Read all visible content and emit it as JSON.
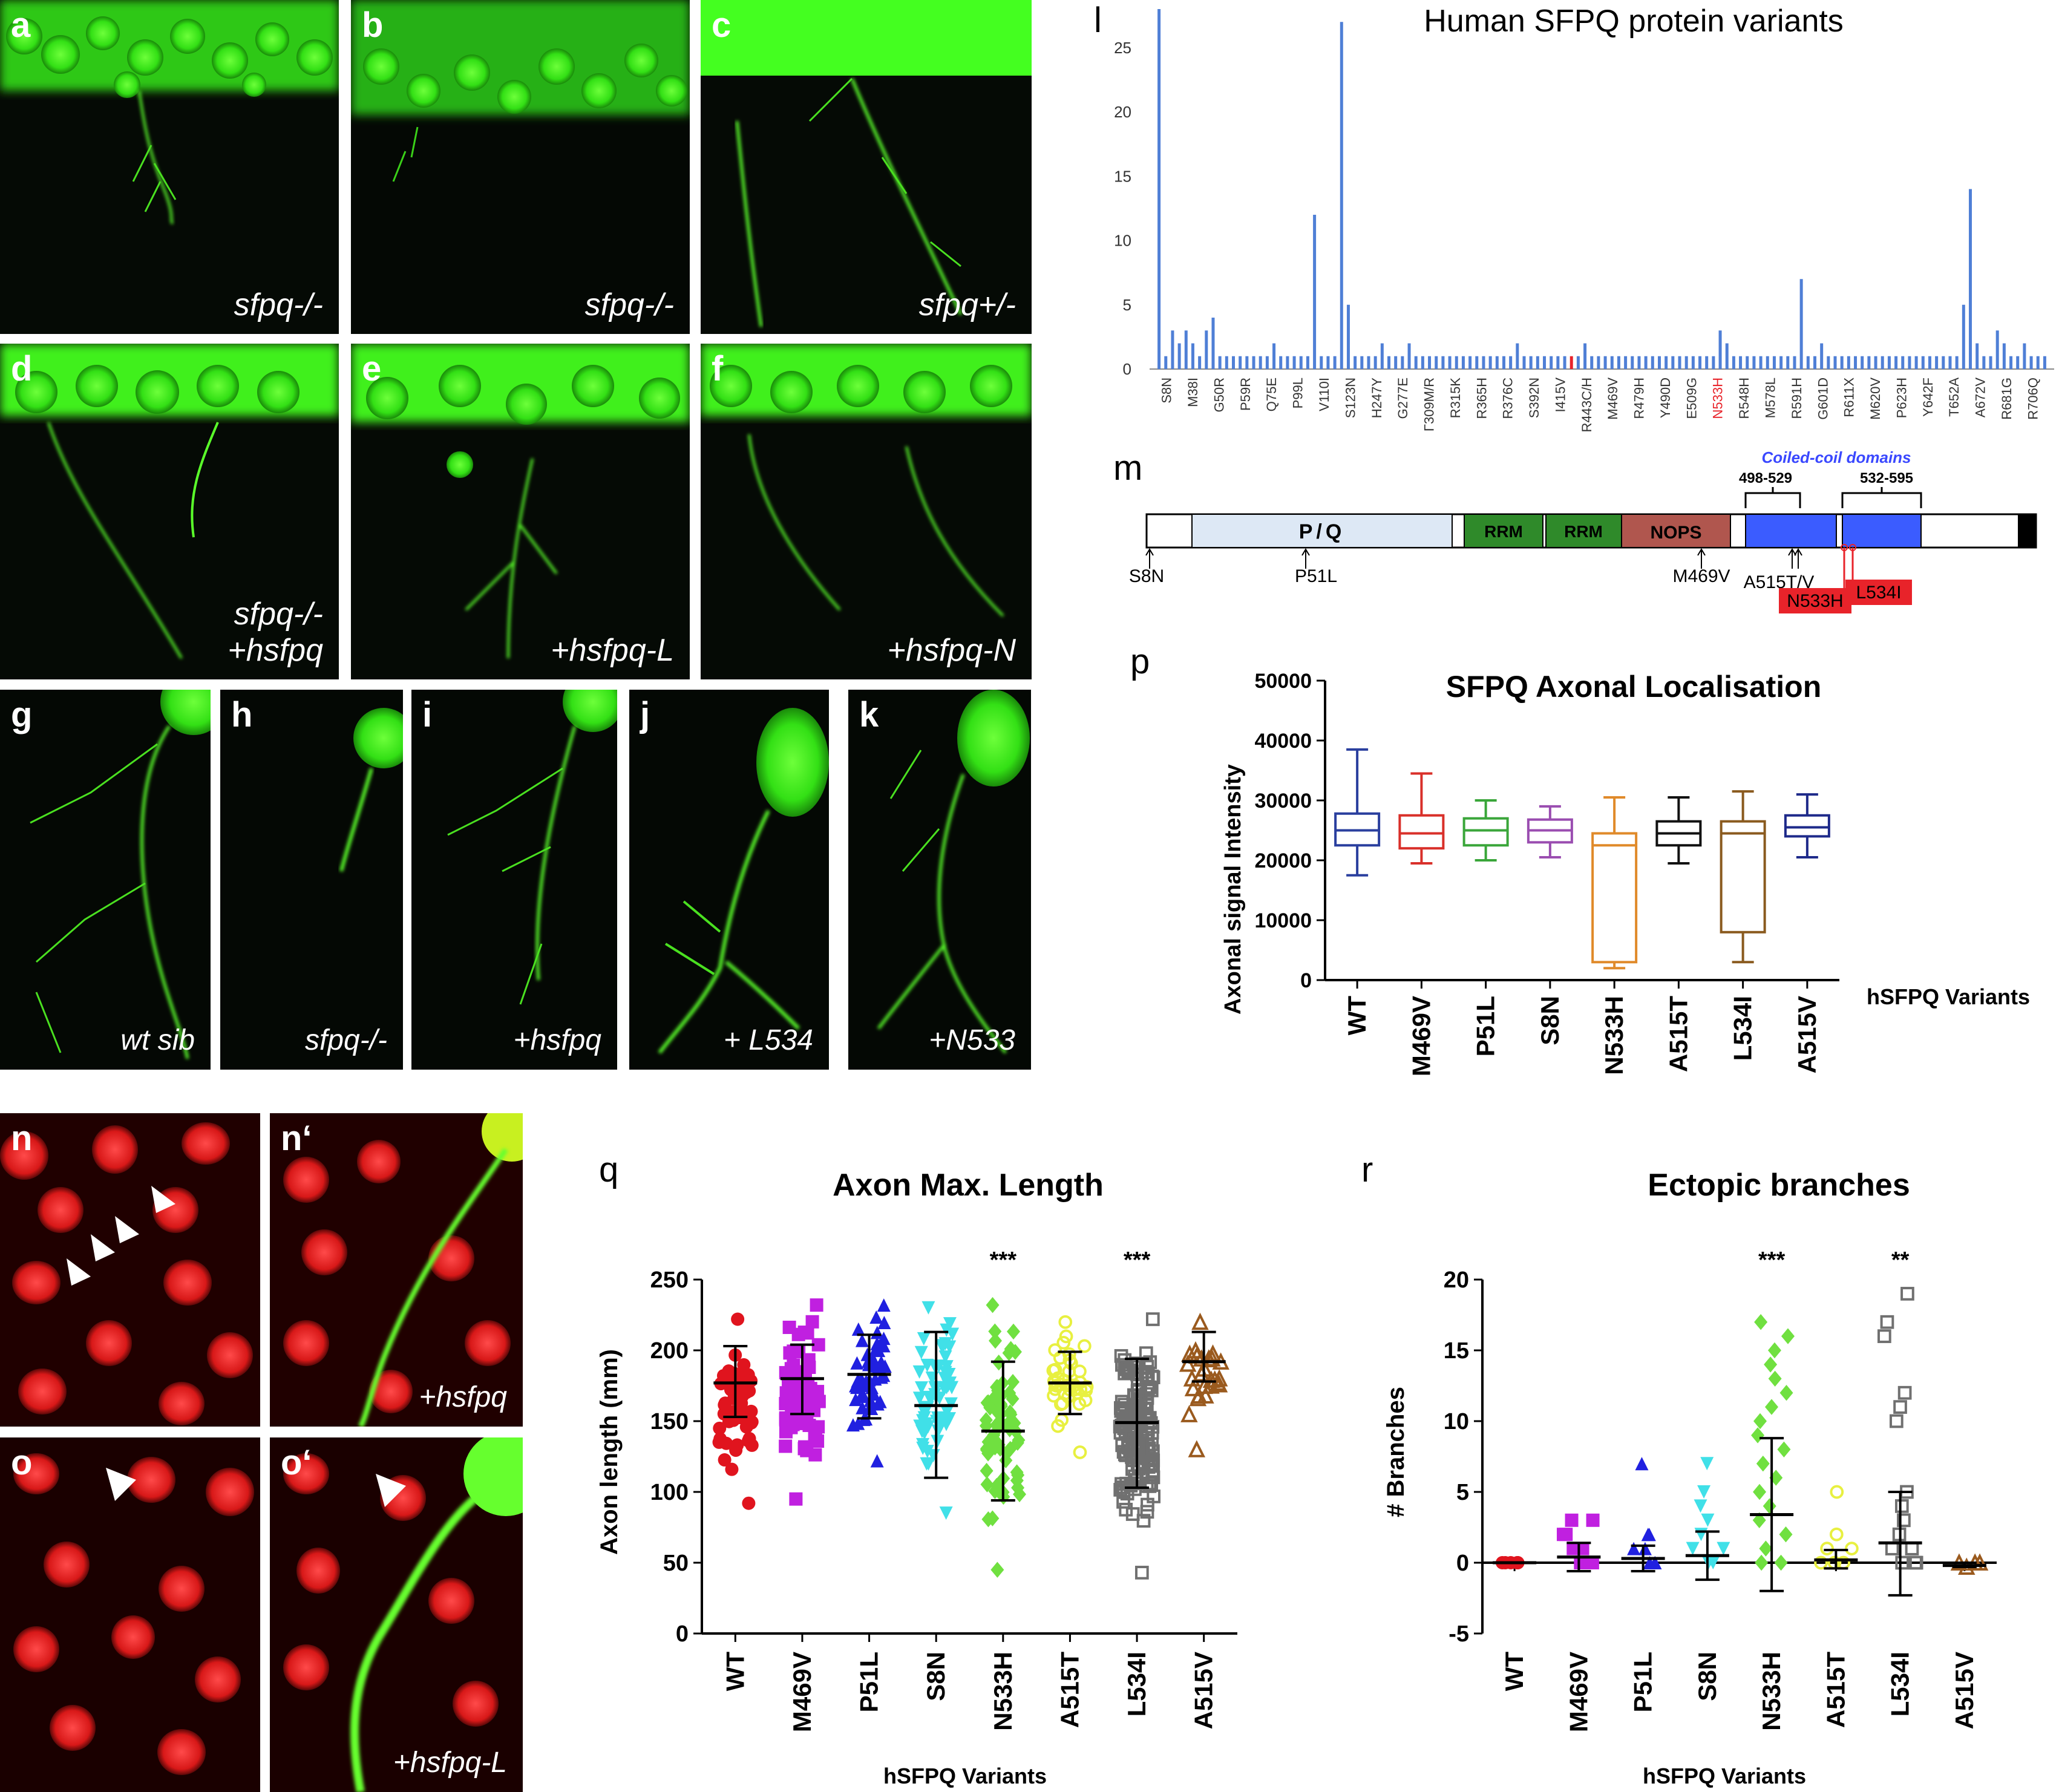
{
  "panels": {
    "a": {
      "label": "a",
      "caption": "sfpq-/-"
    },
    "b": {
      "label": "b",
      "caption": "sfpq-/-"
    },
    "c": {
      "label": "c",
      "caption": "sfpq+/-"
    },
    "d": {
      "label": "d",
      "caption_line1": "sfpq-/-",
      "caption_line2": "+hsfpq"
    },
    "e": {
      "label": "e",
      "caption": "+hsfpq-L"
    },
    "f": {
      "label": "f",
      "caption": "+hsfpq-N"
    },
    "g": {
      "label": "g",
      "caption": "wt sib"
    },
    "h": {
      "label": "h",
      "caption": "sfpq-/-"
    },
    "i": {
      "label": "i",
      "caption": "+hsfpq"
    },
    "j": {
      "label": "j",
      "caption": "+ L534"
    },
    "k": {
      "label": "k",
      "caption": "+N533"
    },
    "n": {
      "label": "n"
    },
    "n2": {
      "label": "n‘",
      "caption": "+hsfpq"
    },
    "o": {
      "label": "o"
    },
    "o2": {
      "label": "o‘",
      "caption": "+hsfpq-L"
    }
  },
  "panel_labels": {
    "l": "l",
    "m": "m",
    "p": "p",
    "q": "q",
    "r": "r"
  },
  "colors": {
    "neuron_green": "#39ff14",
    "nuclei_red": "#ff2a2a",
    "bar_blue": "#4f7fd6",
    "highlight_red": "#e8232a"
  },
  "chart_data": [
    {
      "id": "l",
      "type": "bar",
      "title": "Human SFPQ protein variants",
      "xlabel": "",
      "ylabel": "",
      "ylim": [
        0,
        28
      ],
      "yticks": [
        0,
        5,
        10,
        15,
        20,
        25
      ],
      "tick_labels": [
        "S8N",
        "M38I",
        "G50R",
        "P59R",
        "Q75E",
        "P99L",
        "V110I",
        "S123N",
        "H247Y",
        "G277E",
        "Γ309M/R",
        "R315K",
        "R365H",
        "R376C",
        "S392N",
        "I415V",
        "R443C/H",
        "M469V",
        "R479H",
        "Y490D",
        "E509G",
        "N533H",
        "R548H",
        "M578L",
        "R591H",
        "G601D",
        "R611X",
        "M620V",
        "P623H",
        "Y642F",
        "T652A",
        "A672V",
        "R681G",
        "R706Q"
      ],
      "highlight": "N533H",
      "values": [
        28,
        1,
        3,
        2,
        3,
        2,
        1,
        3,
        4,
        1,
        1,
        1,
        1,
        1,
        1,
        1,
        1,
        2,
        1,
        1,
        1,
        1,
        1,
        12,
        1,
        1,
        1,
        27,
        5,
        1,
        1,
        1,
        1,
        2,
        1,
        1,
        1,
        2,
        1,
        1,
        1,
        1,
        1,
        1,
        1,
        1,
        1,
        1,
        1,
        1,
        1,
        1,
        1,
        2,
        1,
        1,
        1,
        1,
        1,
        1,
        1,
        1,
        1,
        2,
        1,
        1,
        1,
        1,
        1,
        1,
        1,
        1,
        1,
        1,
        1,
        1,
        1,
        1,
        1,
        1,
        1,
        1,
        1,
        3,
        2,
        1,
        1,
        1,
        1,
        1,
        1,
        1,
        1,
        1,
        1,
        7,
        1,
        1,
        2,
        1,
        1,
        1,
        1,
        1,
        1,
        1,
        1,
        1,
        1,
        1,
        1,
        1,
        1,
        1,
        1,
        1,
        1,
        1,
        1,
        5,
        14,
        2,
        1,
        1,
        3,
        2,
        1,
        1,
        2,
        1,
        1,
        1
      ],
      "highlight_index": 61
    },
    {
      "id": "p",
      "type": "box",
      "title": "SFPQ Axonal Localisation",
      "ylabel": "Axonal signal Intensity",
      "xlabel": "hSFPQ Variants",
      "ylim": [
        0,
        50000
      ],
      "yticks": [
        0,
        10000,
        20000,
        30000,
        40000,
        50000
      ],
      "categories": [
        "WT",
        "M469V",
        "P51L",
        "S8N",
        "N533H",
        "A515T",
        "L534I",
        "A515V"
      ],
      "colors": [
        "#2a3f9e",
        "#d9302a",
        "#3aa63a",
        "#9a4db0",
        "#e08a2a",
        "#111111",
        "#8a5a1e",
        "#1e2a8a"
      ],
      "boxes": [
        {
          "min": 17500,
          "q1": 22500,
          "median": 25000,
          "q3": 27800,
          "max": 38500
        },
        {
          "min": 19500,
          "q1": 22000,
          "median": 24500,
          "q3": 27500,
          "max": 34500
        },
        {
          "min": 20000,
          "q1": 22500,
          "median": 25000,
          "q3": 27000,
          "max": 30000
        },
        {
          "min": 20500,
          "q1": 23000,
          "median": 25000,
          "q3": 26800,
          "max": 29000
        },
        {
          "min": 2000,
          "q1": 3000,
          "median": 22500,
          "q3": 24500,
          "max": 30500
        },
        {
          "min": 19500,
          "q1": 22500,
          "median": 24500,
          "q3": 26500,
          "max": 30500
        },
        {
          "min": 3000,
          "q1": 8000,
          "median": 24500,
          "q3": 26500,
          "max": 31500
        },
        {
          "min": 20500,
          "q1": 24000,
          "median": 25500,
          "q3": 27500,
          "max": 31000
        }
      ]
    },
    {
      "id": "q",
      "type": "scatter",
      "title": "Axon Max. Length",
      "ylabel": "Axon length (mm)",
      "xlabel": "hSFPQ Variants",
      "ylim": [
        0,
        250
      ],
      "yticks": [
        0,
        50,
        100,
        150,
        200,
        250
      ],
      "categories": [
        "WT",
        "M469V",
        "P51L",
        "S8N",
        "N533H",
        "A515T",
        "L534I",
        "A515V"
      ],
      "significance": [
        "",
        "",
        "",
        "",
        "***",
        "",
        "***",
        ""
      ],
      "colors": [
        "#e0141e",
        "#c020e0",
        "#2020e0",
        "#40e0e8",
        "#70e040",
        "#e8f040",
        "#707070",
        "#9a5a1e"
      ],
      "markers": [
        "circle",
        "square",
        "triangle",
        "tri-down",
        "diamond",
        "ring",
        "square-open",
        "tri-open"
      ],
      "mean": [
        177,
        180,
        183,
        161,
        143,
        177,
        149,
        192
      ],
      "sd_low": [
        153,
        155,
        152,
        110,
        94,
        155,
        103,
        178
      ],
      "sd_high": [
        203,
        204,
        211,
        213,
        192,
        199,
        194,
        213
      ],
      "ranges": [
        [
          92,
          222
        ],
        [
          95,
          232
        ],
        [
          122,
          232
        ],
        [
          85,
          230
        ],
        [
          45,
          232
        ],
        [
          128,
          220
        ],
        [
          43,
          222
        ],
        [
          130,
          220
        ]
      ],
      "counts": [
        55,
        70,
        50,
        60,
        70,
        40,
        140,
        25
      ]
    },
    {
      "id": "r",
      "type": "scatter",
      "title": "Ectopic branches",
      "ylabel": "# Branches",
      "xlabel": "hSFPQ Variants",
      "ylim": [
        -5,
        20
      ],
      "yticks": [
        -5,
        0,
        5,
        10,
        15,
        20
      ],
      "categories": [
        "WT",
        "M469V",
        "P51L",
        "S8N",
        "N533H",
        "A515T",
        "L534I",
        "A515V"
      ],
      "significance": [
        "",
        "",
        "",
        "",
        "***",
        "",
        "**",
        ""
      ],
      "colors": [
        "#e0141e",
        "#c020e0",
        "#2020e0",
        "#40e0e8",
        "#70e040",
        "#e8f040",
        "#707070",
        "#9a5a1e"
      ],
      "markers": [
        "circle",
        "square",
        "triangle",
        "tri-down",
        "diamond",
        "ring",
        "square-open",
        "tri-open"
      ],
      "mean": [
        0,
        0.4,
        0.3,
        0.5,
        3.4,
        0.2,
        1.4,
        -0.2
      ],
      "sd_low": [
        0,
        -0.6,
        -0.6,
        -1.2,
        -2.0,
        -0.4,
        -2.3,
        -0.3
      ],
      "sd_high": [
        0,
        1.4,
        1.2,
        2.2,
        8.8,
        0.9,
        5.0,
        0
      ],
      "points": [
        [
          0,
          0,
          0,
          0,
          0,
          0
        ],
        [
          0,
          0,
          0,
          1,
          1,
          2,
          2,
          3,
          3
        ],
        [
          0,
          0,
          0,
          1,
          1,
          2,
          2,
          7
        ],
        [
          0,
          0,
          1,
          1,
          2,
          3,
          4,
          5,
          7
        ],
        [
          0,
          0,
          1,
          2,
          3,
          4,
          5,
          6,
          7,
          8,
          9,
          10,
          11,
          12,
          13,
          14,
          15,
          16,
          17
        ],
        [
          0,
          0,
          0,
          1,
          1,
          2,
          5
        ],
        [
          0,
          0,
          0,
          1,
          1,
          2,
          3,
          4,
          5,
          10,
          11,
          12,
          16,
          17,
          19
        ],
        [
          0,
          0,
          0,
          -0.3
        ]
      ]
    }
  ],
  "diagram": {
    "title": "Coiled-coil domains",
    "range1": "498-529",
    "range2": "532-595",
    "domains": {
      "pq": "P/Q",
      "rrm1": "RRM",
      "rrm2": "RRM",
      "nops": "NOPS"
    },
    "mutations": {
      "s8n": "S8N",
      "p51l": "P51L",
      "m469v": "M469V",
      "a515tv": "A515T/V",
      "n533h": "N533H",
      "l534i": "L534I"
    }
  }
}
